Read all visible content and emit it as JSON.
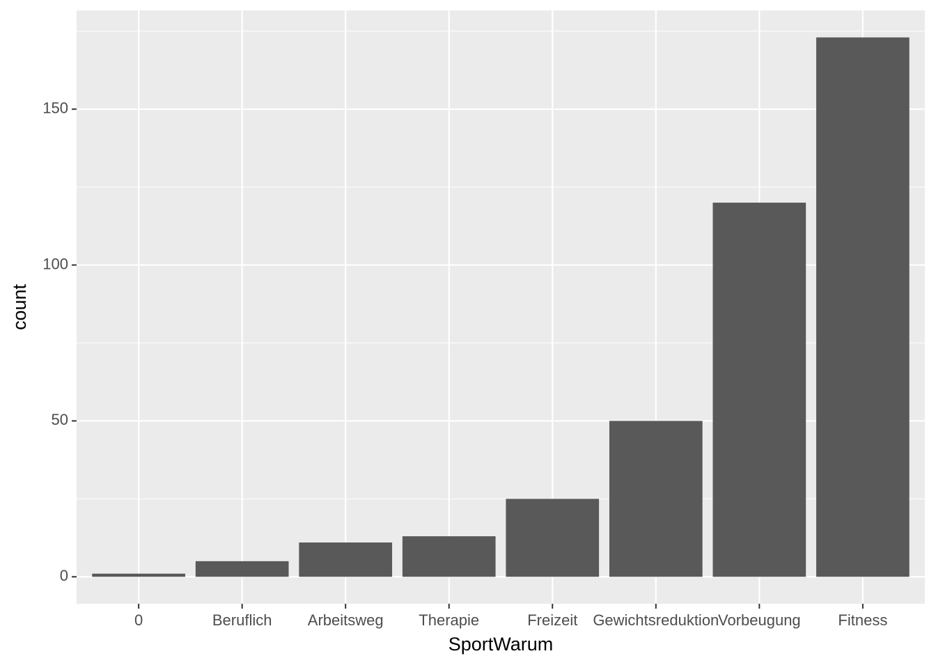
{
  "chart_data": {
    "type": "bar",
    "x_label": "SportWarum",
    "y_label": "count",
    "categories": [
      "0",
      "Beruflich",
      "Arbeitsweg",
      "Therapie",
      "Freizeit",
      "Gewichtsreduktion",
      "Vorbeugung",
      "Fitness"
    ],
    "values": [
      1,
      5,
      11,
      13,
      25,
      50,
      120,
      173
    ],
    "color": "#595959",
    "ylim": [
      -8.65,
      181.65
    ],
    "yticks": [
      0,
      50,
      100,
      150
    ],
    "yminorticks": [
      25,
      75,
      125,
      175
    ],
    "grid": true
  }
}
